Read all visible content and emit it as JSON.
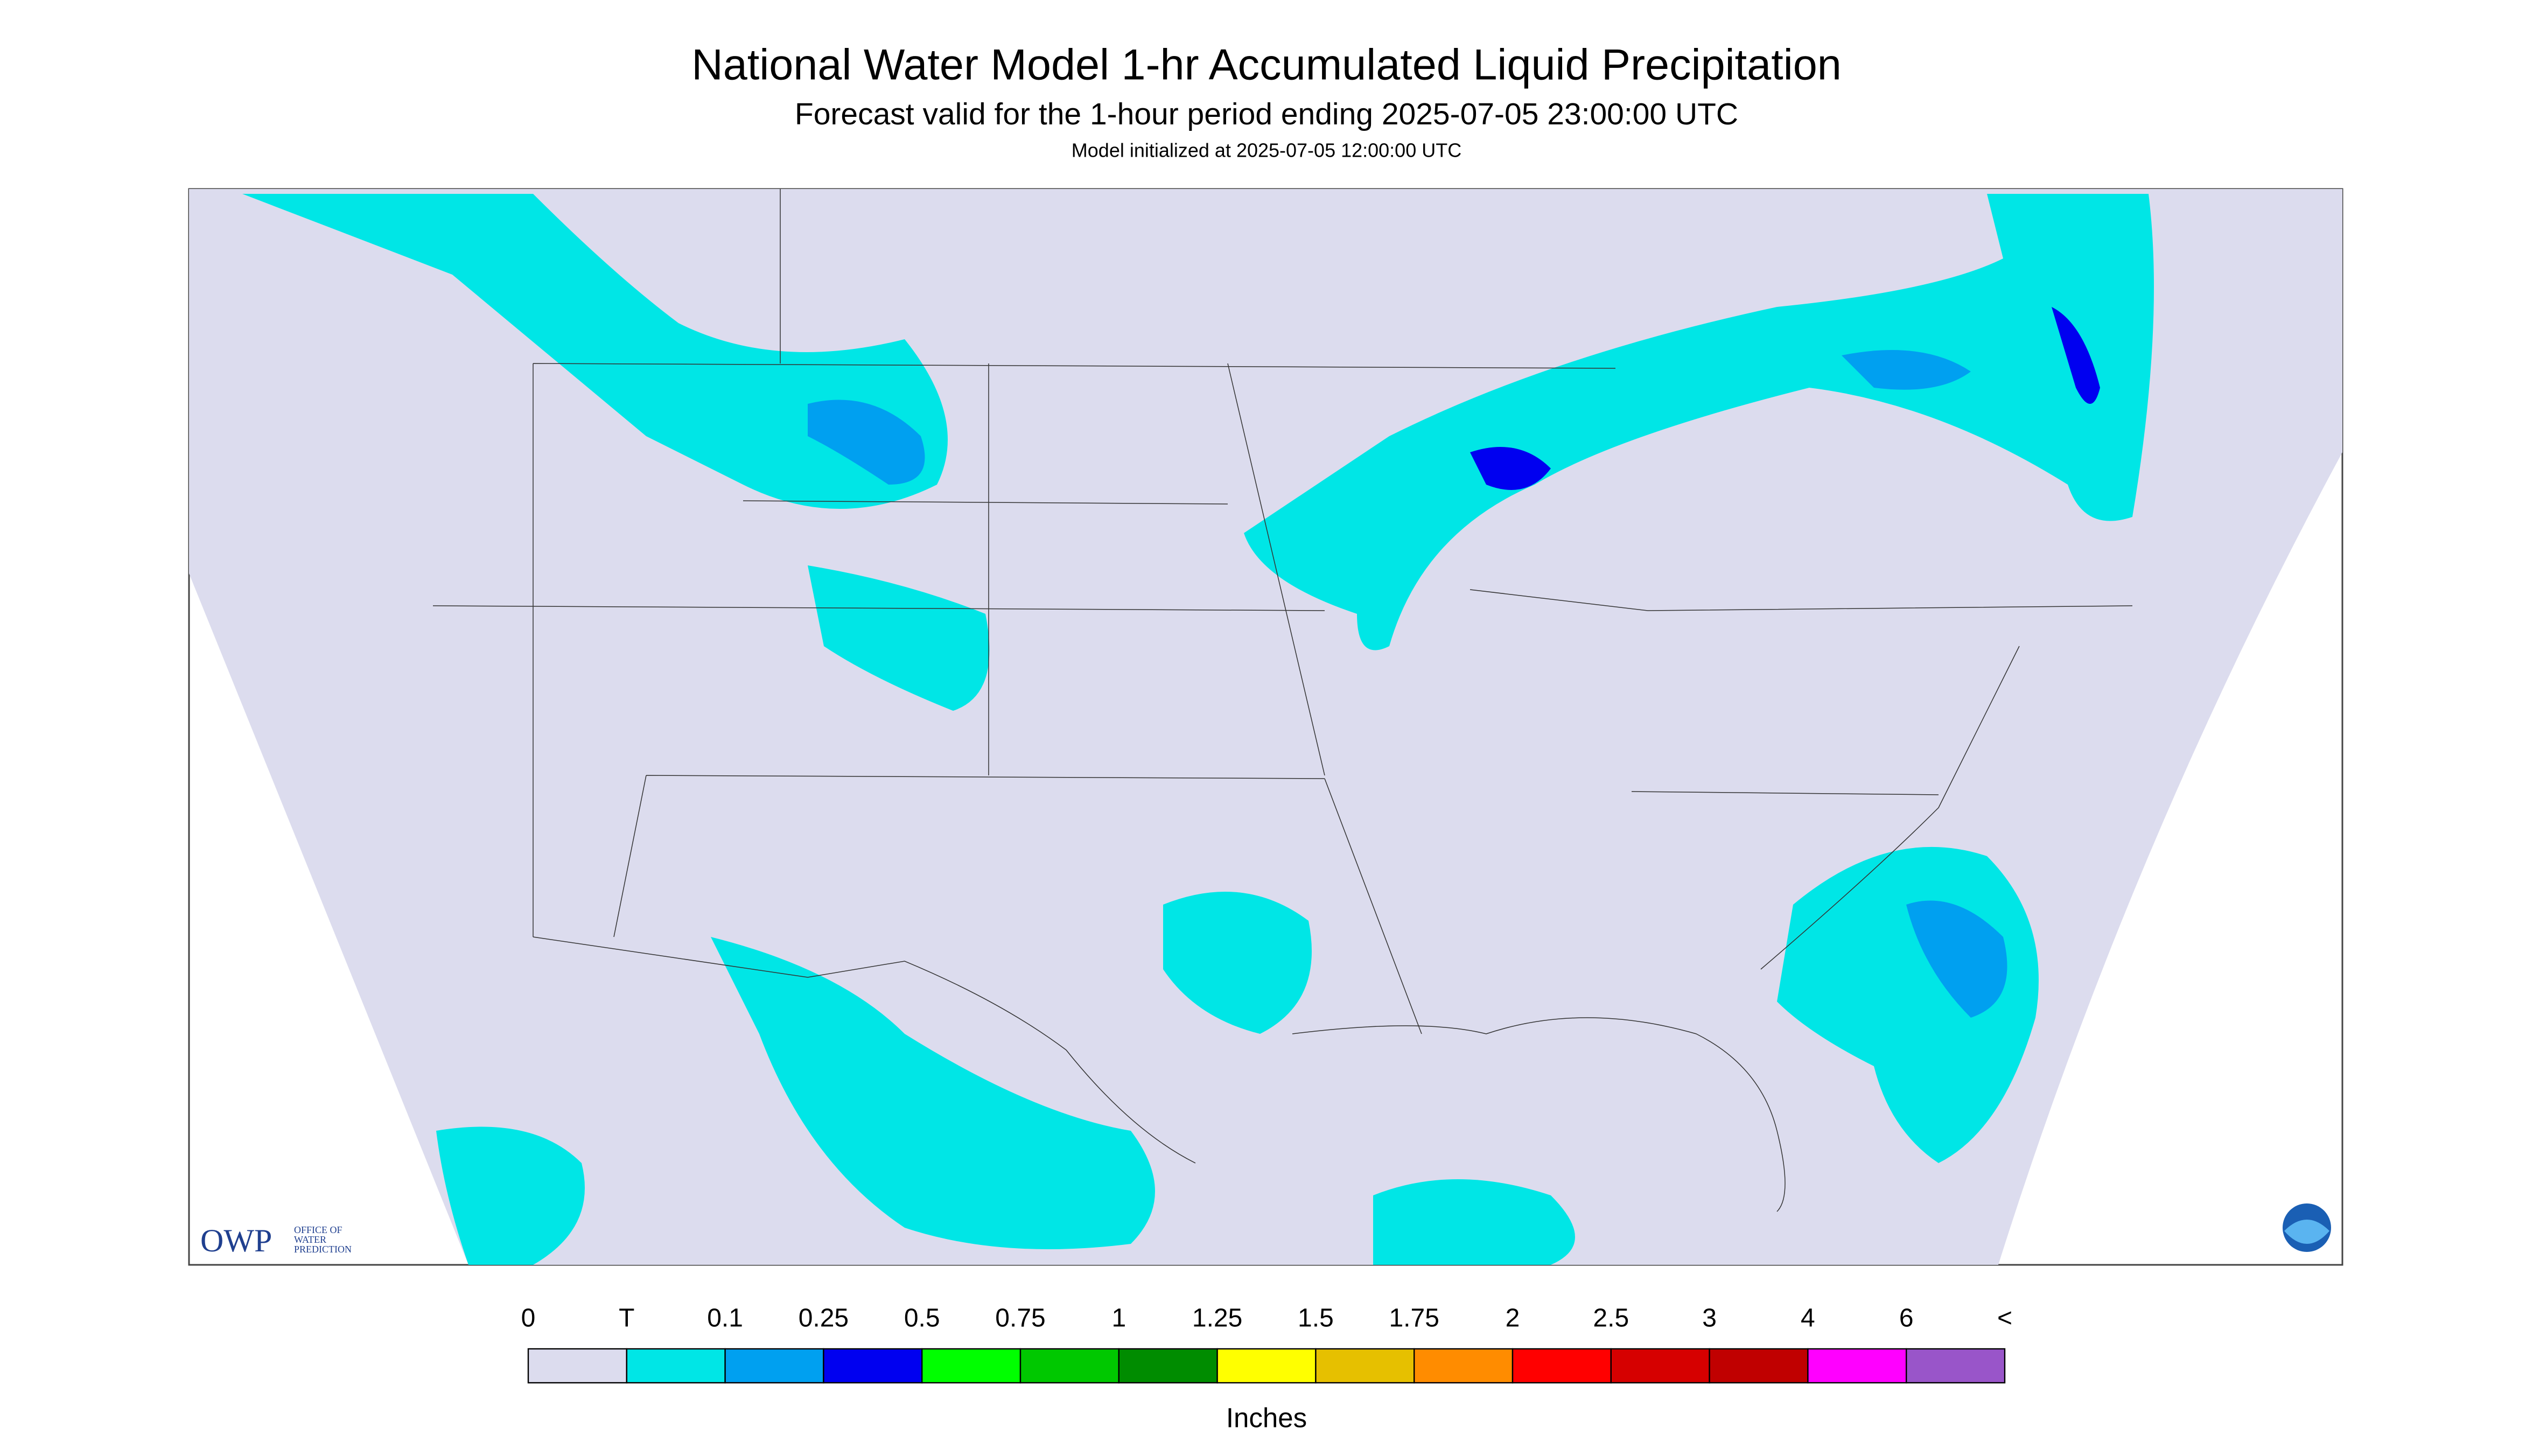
{
  "header": {
    "title": "National Water Model 1-hr Accumulated Liquid Precipitation",
    "subtitle": "Forecast valid for the 1-hour period ending 2025-07-05 23:00:00 UTC",
    "note": "Model initialized at 2025-07-05 12:00:00 UTC"
  },
  "logo": {
    "name": "OWP",
    "text": [
      "OFFICE OF",
      "WATER",
      "PREDICTION"
    ]
  },
  "legend": {
    "ticks": [
      "0",
      "T",
      "0.1",
      "0.25",
      "0.5",
      "0.75",
      "1",
      "1.25",
      "1.5",
      "1.75",
      "2",
      "2.5",
      "3",
      "4",
      "6",
      "<"
    ],
    "colors": [
      "#dcdcee",
      "#00e6e6",
      "#00a0f0",
      "#0000f0",
      "#00ff00",
      "#00c800",
      "#008c00",
      "#ffff00",
      "#e6c000",
      "#ff8c00",
      "#ff0000",
      "#d60000",
      "#c00000",
      "#ff00ff",
      "#9955c9"
    ],
    "unit": "Inches"
  }
}
